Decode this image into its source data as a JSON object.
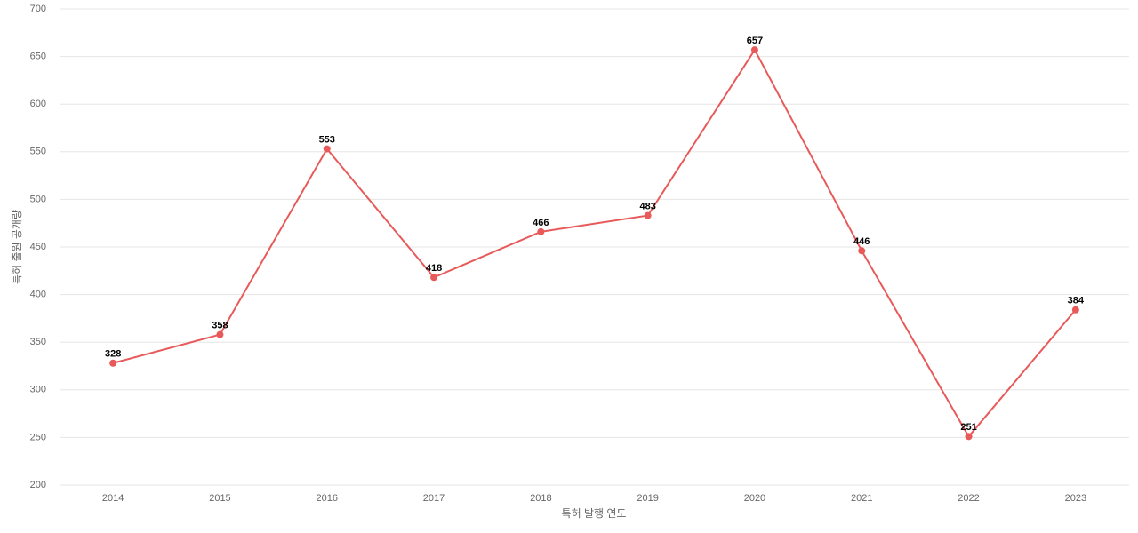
{
  "chart_data": {
    "type": "line",
    "x_label": "특허 발행 연도",
    "y_label": "특허 출원 공개량",
    "categories": [
      "2014",
      "2015",
      "2016",
      "2017",
      "2018",
      "2019",
      "2020",
      "2021",
      "2022",
      "2023"
    ],
    "values": [
      328,
      358,
      553,
      418,
      466,
      483,
      657,
      446,
      251,
      384
    ],
    "color": "#e85a5a",
    "ylim": [
      200,
      700
    ],
    "yticks": [
      200,
      250,
      300,
      350,
      400,
      450,
      500,
      550,
      600,
      650,
      700
    ],
    "grid": true
  }
}
